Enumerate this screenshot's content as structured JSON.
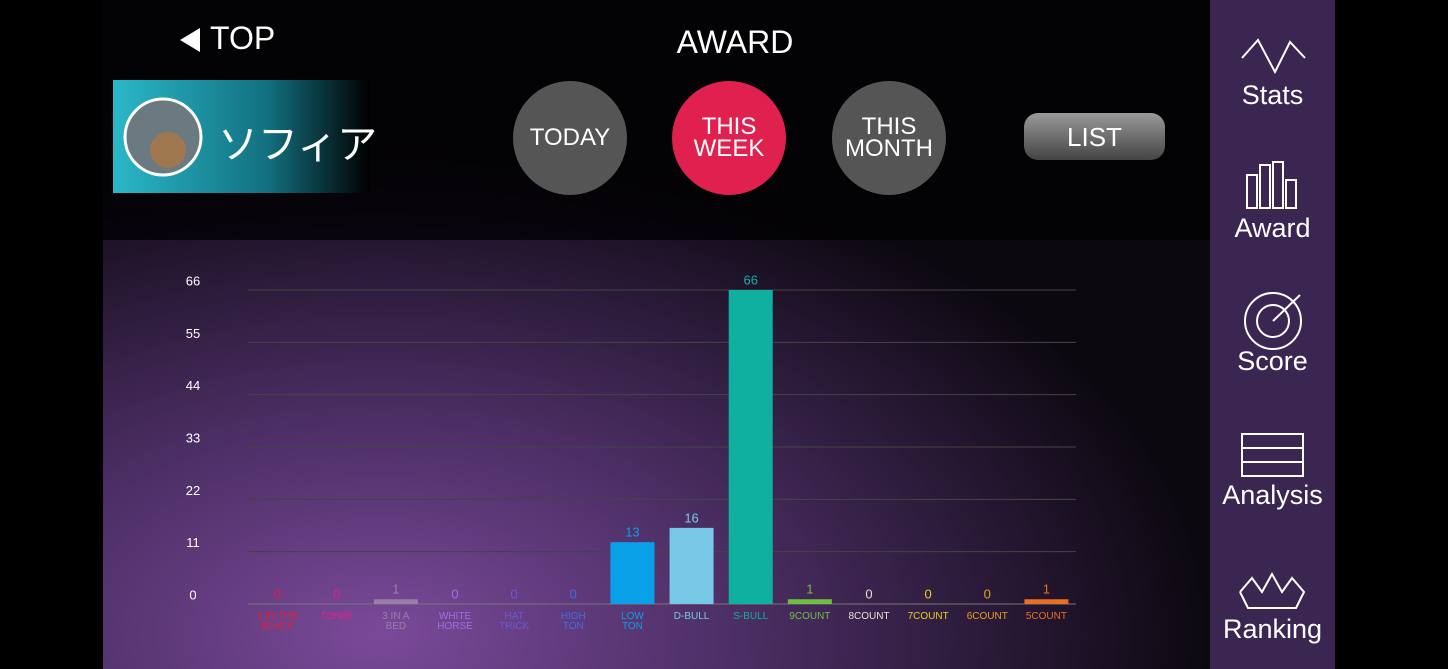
{
  "header": {
    "back": "TOP",
    "title": "AWARD",
    "player": "ソフィア"
  },
  "tabs": [
    "TODAY",
    "THIS WEEK",
    "THIS MONTH"
  ],
  "list_button": "LIST",
  "sidebar": [
    "Stats",
    "Award",
    "Score",
    "Analysis",
    "Ranking"
  ],
  "chart_data": {
    "type": "bar",
    "categories": [
      "3 IN THE BLACK",
      "TON80",
      "3 IN A BED",
      "WHITE HORSE",
      "HAT TRICK",
      "HIGH TON",
      "LOW TON",
      "D-BULL",
      "S-BULL",
      "9COUNT",
      "8COUNT",
      "7COUNT",
      "6COUNT",
      "5COUNT"
    ],
    "values": [
      0,
      0,
      1,
      0,
      0,
      0,
      13,
      16,
      66,
      1,
      0,
      0,
      0,
      1
    ],
    "colors": [
      "#e0203a",
      "#e0208c",
      "#9a7fa8",
      "#a070e0",
      "#6a5ad0",
      "#3a70e0",
      "#0aa0e8",
      "#78c8e8",
      "#10b0a0",
      "#70c040",
      "#e8e0d0",
      "#e8d020",
      "#e8a020",
      "#e87020"
    ],
    "ylim": [
      0,
      66
    ],
    "yticks": [
      0,
      11,
      22,
      33,
      44,
      55,
      66
    ],
    "grid": true
  }
}
